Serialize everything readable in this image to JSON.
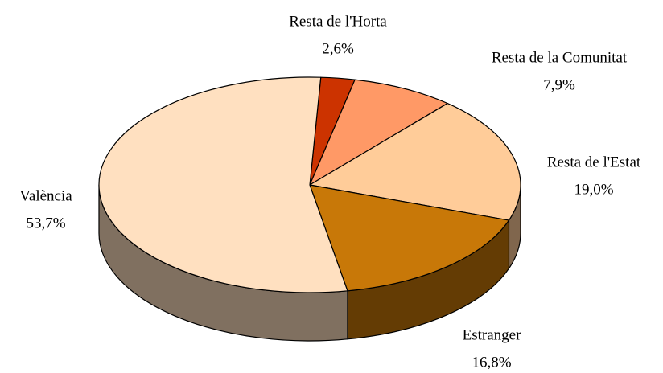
{
  "chart_data": {
    "type": "pie3d",
    "categories": [
      "Resta de l'Horta",
      "Resta de la Comunitat",
      "Resta de l'Estat",
      "Estranger",
      "València"
    ],
    "values": [
      2.6,
      7.9,
      19.0,
      16.8,
      53.7
    ],
    "value_labels": [
      "2,6%",
      "7,9%",
      "19,0%",
      "16,8%",
      "53,7%"
    ],
    "colors": [
      "#cc3300",
      "#ff9966",
      "#ffcc99",
      "#c87808",
      "#ffe0c0"
    ]
  }
}
